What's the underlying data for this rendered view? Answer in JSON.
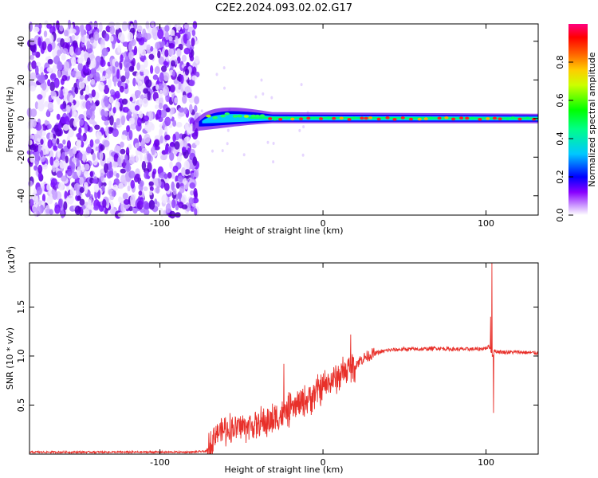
{
  "title": "C2E2.2024.093.02.02.G17",
  "chart_data": [
    {
      "type": "heatmap",
      "xlabel": "Height of straight line (km)",
      "ylabel": "Frequency (Hz)",
      "xlim": [
        -180,
        132
      ],
      "ylim": [
        -50,
        49
      ],
      "xticks": [
        -100,
        0,
        100
      ],
      "yticks": [
        -40,
        -20,
        0,
        20,
        40
      ],
      "noise_region_x": [
        -180,
        -77
      ],
      "signal_ridge": {
        "x_start": -80,
        "x_end": 132,
        "frequency": 0
      },
      "colorbar": {
        "label": "Normalized spectral amplitude",
        "range": [
          0,
          1
        ],
        "ticks": [
          0.0,
          0.2,
          0.4,
          0.6,
          0.8
        ],
        "colormap": [
          "#ffffff",
          "#cc99ff",
          "#8800ff",
          "#0000ff",
          "#00e0ff",
          "#00ff00",
          "#ffff00",
          "#ff8800",
          "#ff0000",
          "#ff0088"
        ]
      }
    },
    {
      "type": "line",
      "xlabel": "Height of straight line (km)",
      "ylabel": "SNR (10 * v/v)",
      "scale_label": "(x10",
      "scale_exp": "4",
      "scale_close": ")",
      "xlim": [
        -180,
        132
      ],
      "ylim": [
        0,
        1.95
      ],
      "xticks": [
        -100,
        0,
        100
      ],
      "yticks": [
        0.5,
        1.0,
        1.5
      ],
      "ytick_labels": [
        "0.5",
        "1.0",
        "1.5"
      ],
      "color": "#e8302a",
      "profile": {
        "x": [
          -180,
          -120,
          -80,
          -71,
          -66,
          -60,
          -50,
          -40,
          -30,
          -25,
          -20,
          -15,
          -10,
          -5,
          0,
          5,
          10,
          15,
          20,
          25,
          30,
          40,
          50,
          60,
          70,
          80,
          90,
          95,
          100,
          102,
          103,
          104,
          105,
          110,
          120,
          132
        ],
        "y": [
          0.02,
          0.02,
          0.02,
          0.03,
          0.22,
          0.25,
          0.28,
          0.3,
          0.35,
          0.4,
          0.45,
          0.5,
          0.55,
          0.62,
          0.68,
          0.74,
          0.8,
          0.85,
          0.92,
          0.98,
          1.02,
          1.06,
          1.07,
          1.07,
          1.08,
          1.07,
          1.07,
          1.07,
          1.08,
          1.1,
          1.05,
          1.0,
          1.05,
          1.04,
          1.04,
          1.03
        ]
      },
      "spikes": [
        {
          "x": 103.6,
          "y": 1.95
        },
        {
          "x": 102.8,
          "y": 1.4
        },
        {
          "x": 104.6,
          "y": 0.42
        },
        {
          "x": 17,
          "y": 1.22
        },
        {
          "x": -24,
          "y": 0.92
        }
      ]
    }
  ]
}
